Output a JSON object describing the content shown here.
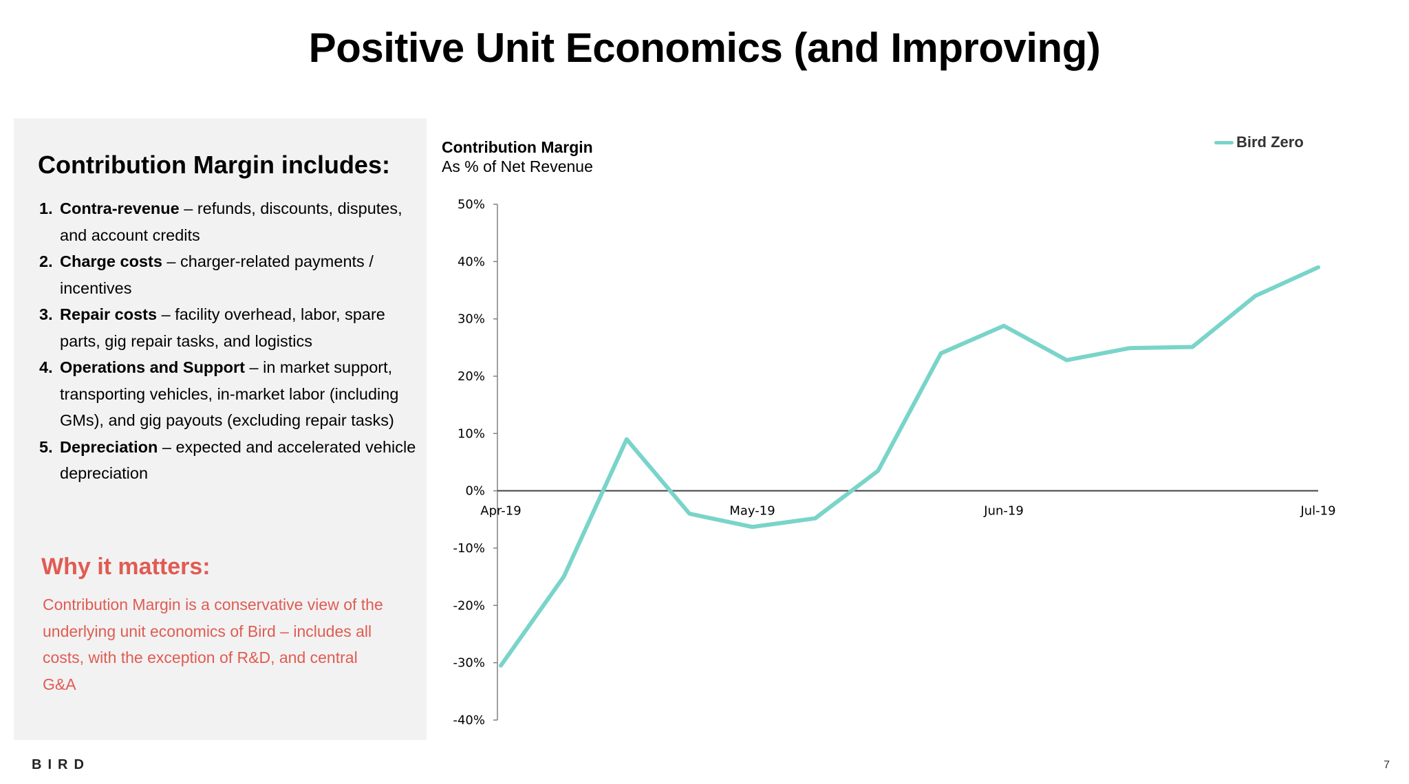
{
  "page": {
    "title": "Positive Unit Economics (and Improving)",
    "logo": "BIRD",
    "page_number": "7"
  },
  "sidebar": {
    "heading": "Contribution Margin includes:",
    "items": [
      {
        "num": "1.",
        "bold": "Contra-revenue",
        "text": " – refunds, discounts, disputes, and account credits"
      },
      {
        "num": "2.",
        "bold": "Charge costs",
        "text": " – charger-related payments / incentives"
      },
      {
        "num": "3.",
        "bold": "Repair costs",
        "text": " – facility overhead, labor, spare parts, gig repair tasks, and logistics"
      },
      {
        "num": "4.",
        "bold": "Operations and Support",
        "text": " – in market support, transporting vehicles, in-market labor (including GMs), and gig payouts (excluding repair tasks)"
      },
      {
        "num": "5.",
        "bold": "Depreciation",
        "text": " – expected and accelerated vehicle depreciation"
      }
    ],
    "why_heading": "Why it matters:",
    "why_text": "Contribution Margin is a conservative view of the underlying unit economics of Bird – includes all costs, with the exception of R&D, and central G&A"
  },
  "colors": {
    "series": "#79d4c9",
    "accent_red": "#e05b52",
    "panel_bg": "#f2f2f2"
  },
  "chart_data": {
    "type": "line",
    "title": "Contribution Margin",
    "subtitle": "As % of Net Revenue",
    "xlabel": "",
    "ylabel": "",
    "x_ticks": [
      "Apr-19",
      "May-19",
      "Jun-19",
      "Jul-19"
    ],
    "y_ticks": [
      "50%",
      "40%",
      "30%",
      "20%",
      "10%",
      "0%",
      "-10%",
      "-20%",
      "-30%",
      "-40%"
    ],
    "ylim": [
      -40,
      50
    ],
    "grid": false,
    "legend": "top-right",
    "series": [
      {
        "name": "Bird Zero",
        "x": [
          "Apr-19 wk1",
          "Apr-19 wk2",
          "Apr-19 wk3",
          "Apr-19 wk4",
          "May-19 wk1",
          "May-19 wk2",
          "May-19 wk3",
          "May-19 wk4",
          "Jun-19 wk1",
          "Jun-19 wk2",
          "Jun-19 wk3",
          "Jun-19 wk4",
          "Jul-19 wk1",
          "Jul-19 wk2"
        ],
        "values": [
          -30.5,
          -15,
          9,
          -4,
          -6.3,
          -4.8,
          3.5,
          24,
          28.8,
          22.8,
          24.9,
          25.1,
          34,
          39
        ]
      }
    ]
  }
}
